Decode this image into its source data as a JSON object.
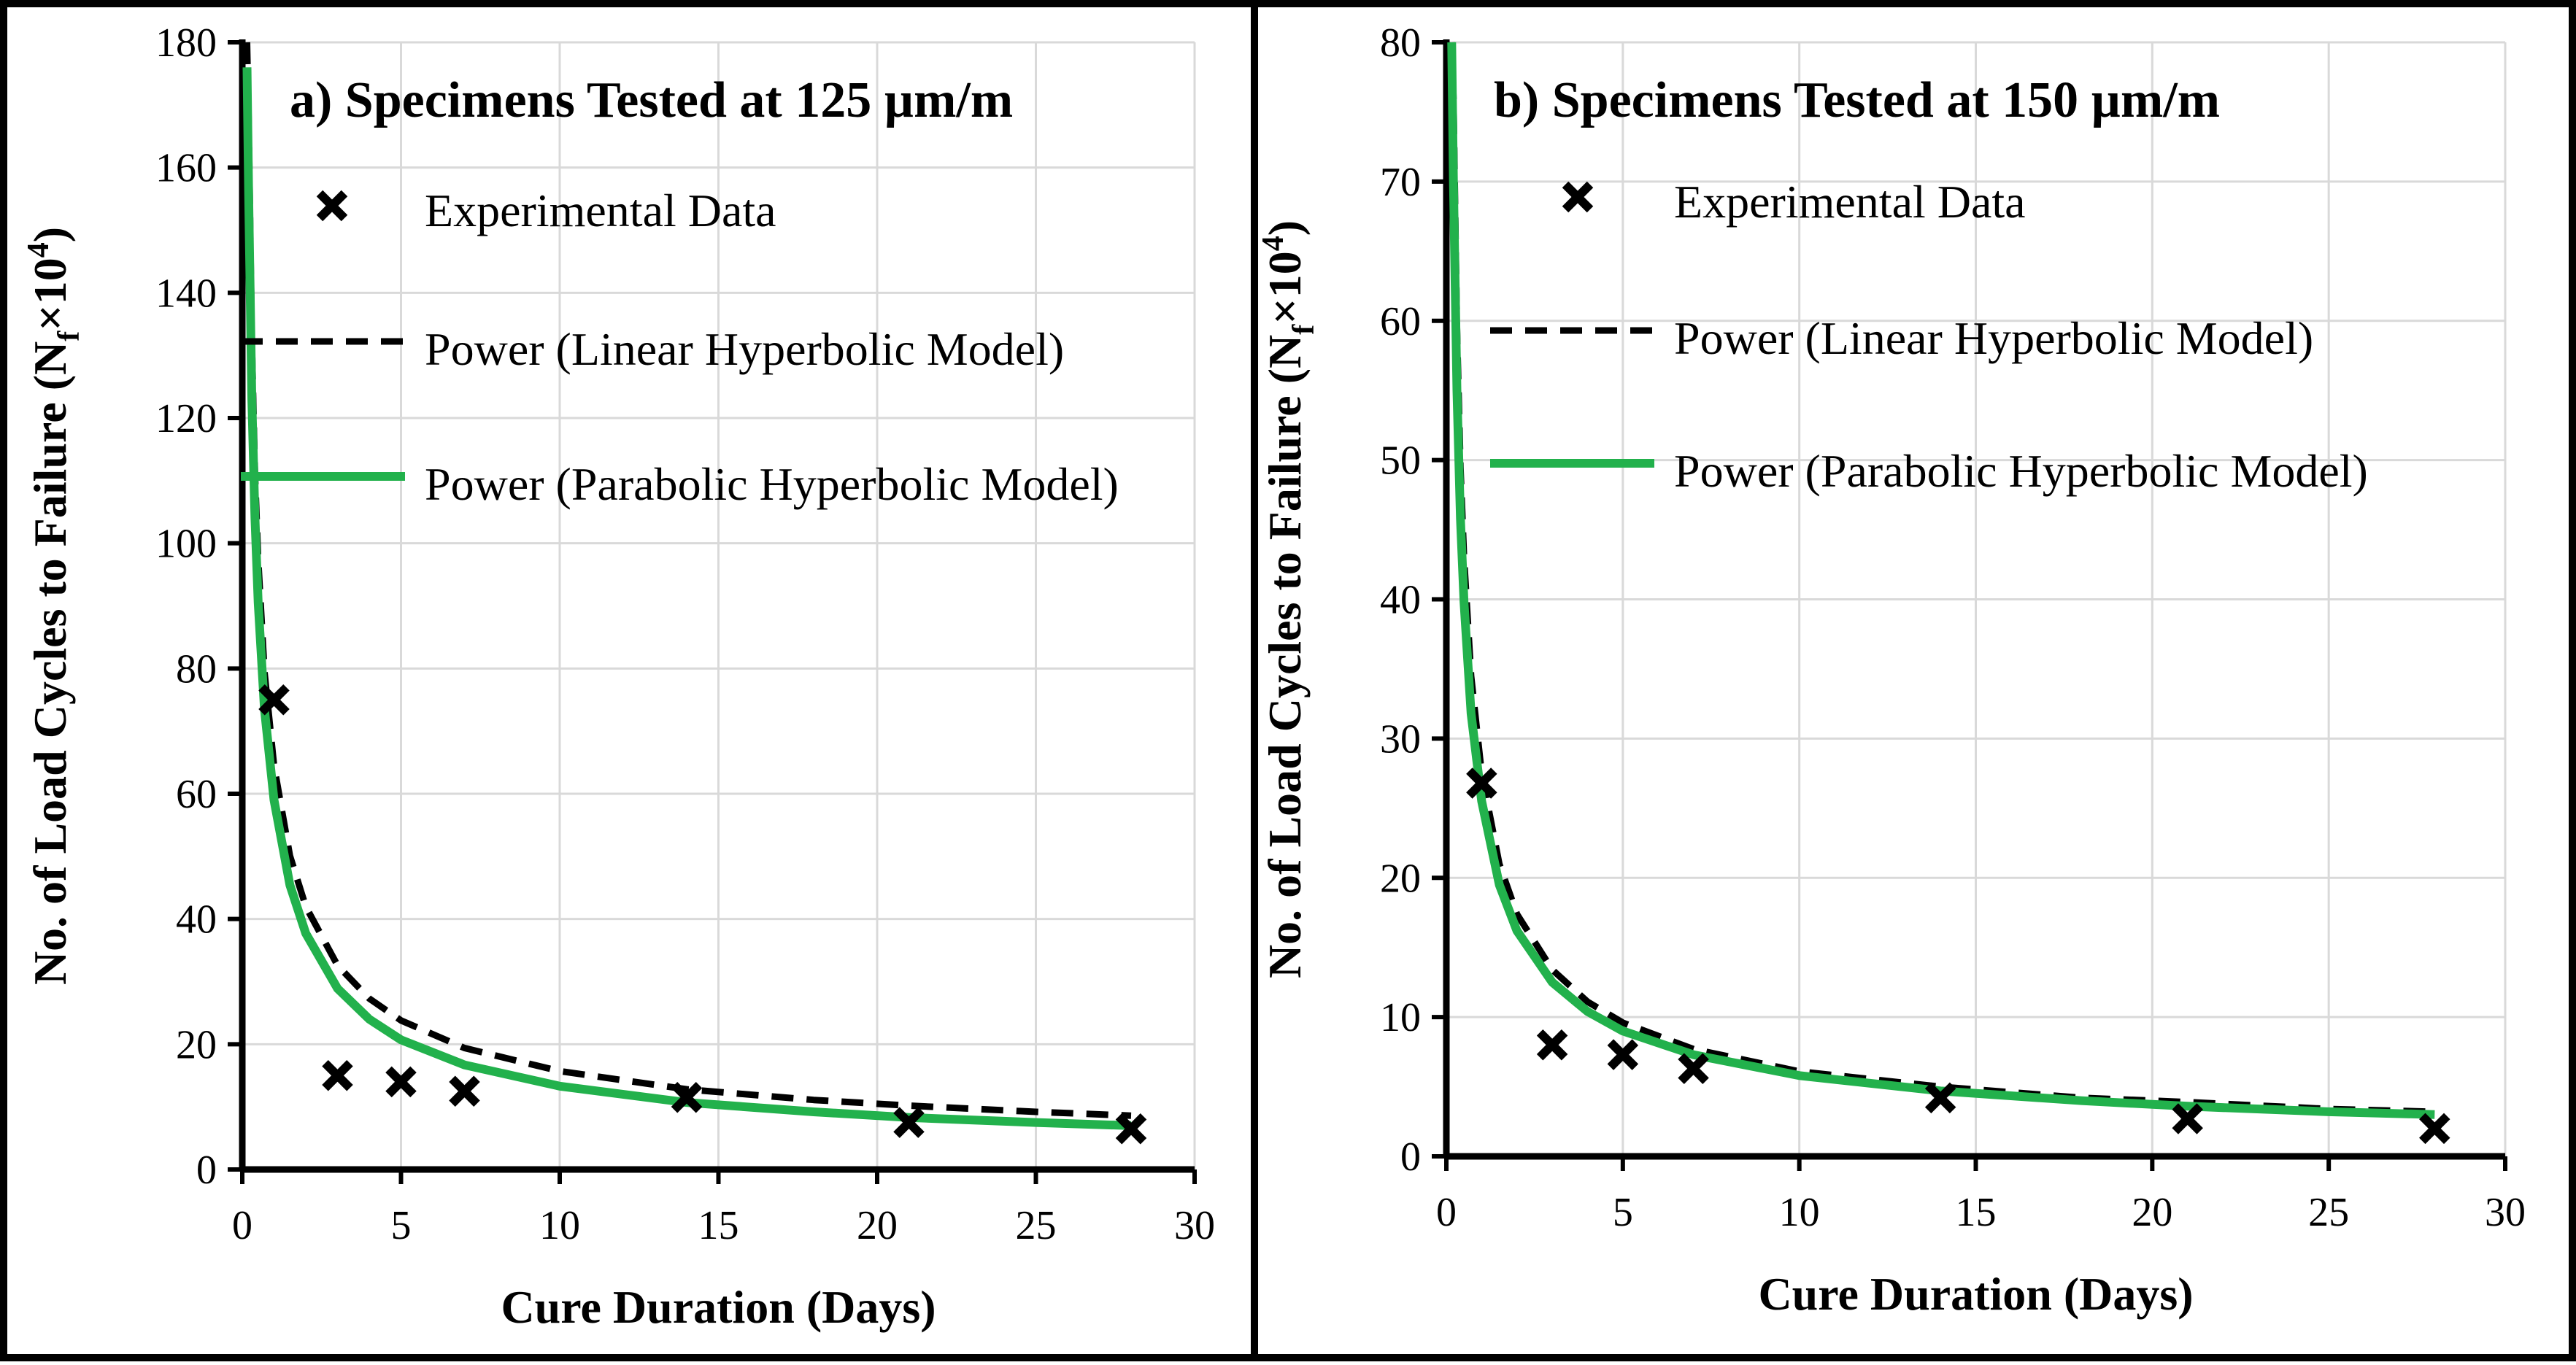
{
  "colors": {
    "experimental": "#000000",
    "linear_model": "#000000",
    "parabolic_model": "#22b14c",
    "grid": "#d9d9d9",
    "axis": "#000000"
  },
  "chart_data": [
    {
      "id": "a",
      "type": "scatter",
      "title": "a) Specimens Tested at 125 µm/m",
      "xlabel": "Cure Duration (Days)",
      "ylabel": "No. of Load Cycles to Failure (N",
      "ylabel_sub": "f",
      "ylabel_tail": "×10",
      "ylabel_sup": "4",
      "ylabel_close": ")",
      "xlim": [
        0,
        30
      ],
      "ylim": [
        0,
        180
      ],
      "xticks": [
        0,
        5,
        10,
        15,
        20,
        25,
        30
      ],
      "yticks": [
        0,
        20,
        40,
        60,
        80,
        100,
        120,
        140,
        160,
        180
      ],
      "xtick_labels": [
        "0",
        "5",
        "10",
        "15",
        "20",
        "25",
        "30"
      ],
      "ytick_labels": [
        "0",
        "20",
        "40",
        "60",
        "80",
        "100",
        "120",
        "140",
        "160",
        "180"
      ],
      "grid": true,
      "legend_position": "top-right",
      "legend": [
        "Experimental Data",
        "Power (Linear Hyperbolic Model)",
        "Power (Parabolic Hyperbolic Model)"
      ],
      "series": [
        {
          "name": "Experimental Data",
          "kind": "marker",
          "x": [
            1,
            3,
            5,
            7,
            14,
            21,
            28
          ],
          "y": [
            75,
            15,
            14,
            12.5,
            11.5,
            7.5,
            6.5
          ]
        },
        {
          "name": "Power (Linear Hyperbolic Model)",
          "kind": "line",
          "style": "dashed",
          "x": [
            0.15,
            0.2,
            0.3,
            0.4,
            0.5,
            0.7,
            1,
            1.5,
            2,
            3,
            4,
            5,
            7,
            10,
            14,
            18,
            21,
            25,
            28
          ],
          "y": [
            180,
            167.5,
            132,
            111,
            97.4,
            79.5,
            64.5,
            50.1,
            42,
            32.6,
            27.3,
            23.8,
            19.4,
            15.7,
            12.8,
            11.1,
            10.2,
            9.2,
            8.6
          ]
        },
        {
          "name": "Power (Parabolic Hyperbolic Model)",
          "kind": "line",
          "style": "solid",
          "x": [
            0.15,
            0.2,
            0.3,
            0.4,
            0.5,
            0.7,
            1,
            1.5,
            2,
            3,
            4,
            5,
            7,
            10,
            14,
            18,
            21,
            25,
            28
          ],
          "y": [
            176,
            156,
            123,
            104,
            90.5,
            73.5,
            59,
            45.4,
            37.7,
            28.9,
            24,
            20.7,
            16.7,
            13.3,
            10.7,
            9.2,
            8.3,
            7.5,
            7
          ]
        }
      ]
    },
    {
      "id": "b",
      "type": "scatter",
      "title": "b) Specimens Tested at 150 µm/m",
      "xlabel": "Cure Duration (Days)",
      "ylabel": "No. of Load Cycles to Failure (N",
      "ylabel_sub": "f",
      "ylabel_tail": "×10",
      "ylabel_sup": "4",
      "ylabel_close": ")",
      "xlim": [
        0,
        30
      ],
      "ylim": [
        0,
        80
      ],
      "xticks": [
        0,
        5,
        10,
        15,
        20,
        25,
        30
      ],
      "yticks": [
        0,
        10,
        20,
        30,
        40,
        50,
        60,
        70,
        80
      ],
      "xtick_labels": [
        "0",
        "5",
        "10",
        "15",
        "20",
        "25",
        "30"
      ],
      "ytick_labels": [
        "0",
        "10",
        "20",
        "30",
        "40",
        "50",
        "60",
        "70",
        "80"
      ],
      "grid": true,
      "legend_position": "top-right",
      "legend": [
        "Experimental Data",
        "Power (Linear Hyperbolic Model)",
        "Power (Parabolic Hyperbolic Model)"
      ],
      "series": [
        {
          "name": "Experimental Data",
          "kind": "marker",
          "x": [
            1,
            3,
            5,
            7,
            14,
            21,
            28
          ],
          "y": [
            26.8,
            8,
            7.3,
            6.3,
            4.2,
            2.7,
            2
          ]
        },
        {
          "name": "Power (Linear Hyperbolic Model)",
          "kind": "line",
          "style": "dashed",
          "x": [
            0.15,
            0.2,
            0.3,
            0.4,
            0.5,
            0.7,
            1,
            1.5,
            2,
            3,
            4,
            5,
            7,
            10,
            14,
            18,
            21,
            25,
            28
          ],
          "y": [
            80,
            76,
            59.5,
            49.5,
            43,
            34.5,
            27.5,
            21,
            17.4,
            13.4,
            11.1,
            9.6,
            7.7,
            6.1,
            5,
            4.2,
            3.9,
            3.4,
            3.2
          ]
        },
        {
          "name": "Power (Parabolic Hyperbolic Model)",
          "kind": "line",
          "style": "solid",
          "x": [
            0.15,
            0.2,
            0.3,
            0.4,
            0.5,
            0.7,
            1,
            1.5,
            2,
            3,
            4,
            5,
            7,
            10,
            14,
            18,
            21,
            25,
            28
          ],
          "y": [
            80,
            70,
            55,
            45.8,
            39.8,
            31.8,
            25.5,
            19.5,
            16.2,
            12.5,
            10.4,
            9,
            7.3,
            5.8,
            4.7,
            4,
            3.6,
            3.2,
            3
          ]
        }
      ]
    }
  ]
}
